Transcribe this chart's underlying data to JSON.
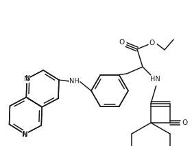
{
  "bg_color": "#ffffff",
  "line_color": "#1a1a1a",
  "line_width": 1.1,
  "fig_width": 2.8,
  "fig_height": 2.14,
  "dpi": 100,
  "xlim": [
    0,
    280
  ],
  "ylim": [
    0,
    214
  ]
}
